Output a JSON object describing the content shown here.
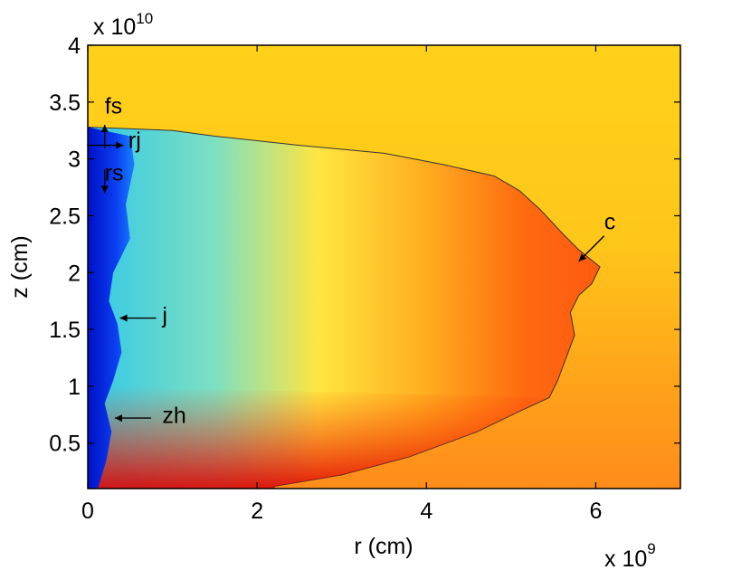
{
  "chart_data": {
    "type": "heatmap",
    "title": "",
    "xlabel": "r (cm)",
    "ylabel": "z (cm)",
    "x_multiplier": "x 10",
    "x_multiplier_exp": "9",
    "y_multiplier": "x 10",
    "y_multiplier_exp": "10",
    "xlim": [
      0,
      7
    ],
    "ylim": [
      0.1,
      4
    ],
    "xticks": [
      0,
      2,
      4,
      6
    ],
    "xtick_labels": [
      "0",
      "2",
      "4",
      "6"
    ],
    "yticks": [
      0.5,
      1,
      1.5,
      2,
      2.5,
      3,
      3.5,
      4
    ],
    "ytick_labels": [
      "0.5",
      "1",
      "1.5",
      "2",
      "2.5",
      "3",
      "3.5",
      "4"
    ],
    "colormap": "jet",
    "background_color": "#ffd11a",
    "cocoon_boundary": [
      [
        0,
        3.28
      ],
      [
        1.0,
        3.25
      ],
      [
        1.5,
        3.2
      ],
      [
        2.5,
        3.12
      ],
      [
        3.5,
        3.05
      ],
      [
        4.2,
        2.95
      ],
      [
        4.8,
        2.85
      ],
      [
        5.1,
        2.72
      ],
      [
        5.35,
        2.55
      ],
      [
        5.6,
        2.35
      ],
      [
        5.8,
        2.2
      ],
      [
        6.05,
        2.05
      ],
      [
        5.95,
        1.9
      ],
      [
        5.8,
        1.8
      ],
      [
        5.7,
        1.65
      ],
      [
        5.75,
        1.45
      ],
      [
        5.65,
        1.25
      ],
      [
        5.55,
        1.05
      ],
      [
        5.45,
        0.9
      ],
      [
        5.1,
        0.78
      ],
      [
        4.6,
        0.6
      ],
      [
        3.8,
        0.38
      ],
      [
        3.0,
        0.22
      ],
      [
        2.2,
        0.12
      ]
    ],
    "jet_boundary": [
      [
        0,
        3.28
      ],
      [
        0.5,
        3.2
      ],
      [
        0.55,
        2.95
      ],
      [
        0.45,
        2.6
      ],
      [
        0.5,
        2.3
      ],
      [
        0.3,
        2.0
      ],
      [
        0.25,
        1.75
      ],
      [
        0.35,
        1.55
      ],
      [
        0.4,
        1.3
      ],
      [
        0.3,
        1.05
      ],
      [
        0.2,
        0.85
      ],
      [
        0.28,
        0.6
      ],
      [
        0.22,
        0.35
      ],
      [
        0.12,
        0.1
      ]
    ],
    "annotations": [
      {
        "label": "fs",
        "point": [
          0.2,
          3.3
        ],
        "text_pos": [
          0.2,
          3.47
        ],
        "arrow_dir": "up"
      },
      {
        "label": "rj",
        "point": [
          0.42,
          3.12
        ],
        "text_pos": [
          0.48,
          3.17
        ],
        "arrow_dir": "right"
      },
      {
        "label": "rs",
        "point": [
          0.2,
          2.7
        ],
        "text_pos": [
          0.2,
          2.88
        ],
        "arrow_dir": "down"
      },
      {
        "label": "c",
        "point": [
          5.8,
          2.1
        ],
        "text_pos": [
          6.1,
          2.45
        ],
        "arrow_dir": "down-left"
      },
      {
        "label": "j",
        "point": [
          0.38,
          1.6
        ],
        "text_pos": [
          0.88,
          1.63
        ],
        "arrow_dir": "left"
      },
      {
        "label": "zh",
        "point": [
          0.32,
          0.72
        ],
        "text_pos": [
          0.88,
          0.75
        ],
        "arrow_dir": "left"
      }
    ],
    "grid": false,
    "legend": "none"
  }
}
